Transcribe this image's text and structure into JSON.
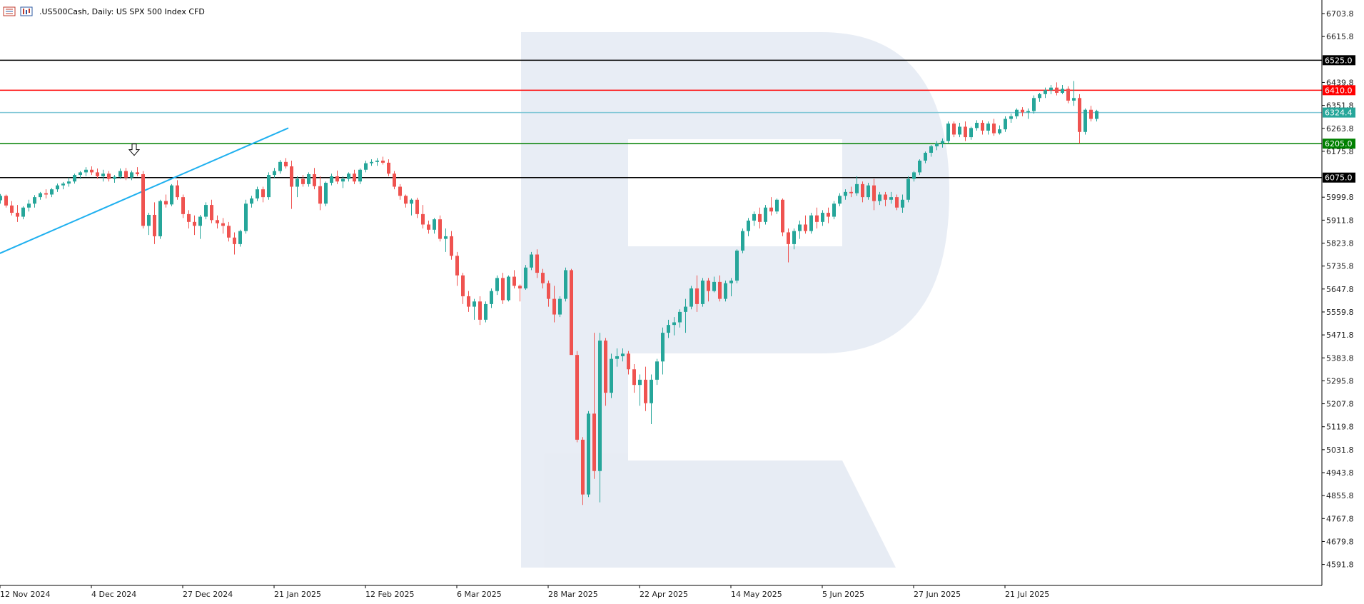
{
  "header": {
    "title": ".US500Cash, Daily:  US SPX 500 Index CFD",
    "icon_names": [
      "chart-window-icon",
      "bars-icon"
    ]
  },
  "chart_data": {
    "type": "candlestick",
    "title": ".US500Cash, Daily:  US SPX 500 Index CFD",
    "symbol": ".US500Cash",
    "timeframe": "Daily",
    "description": "US SPX 500 Index CFD",
    "y_ticks": [
      6703.8,
      6615.8,
      6439.8,
      6351.8,
      6263.8,
      6175.8,
      5999.8,
      5911.8,
      5823.8,
      5735.8,
      5647.8,
      5559.8,
      5471.8,
      5383.8,
      5295.8,
      5207.8,
      5119.8,
      5031.8,
      4943.8,
      4855.8,
      4767.8,
      4679.8,
      4591.8
    ],
    "y_tick_labels": [
      "6703.8",
      "6615.8",
      "6439.8",
      "6351.8",
      "6263.8",
      "6175.8",
      "5999.8",
      "5911.8",
      "5823.8",
      "5735.8",
      "5647.8",
      "5559.8",
      "5471.8",
      "5383.8",
      "5295.8",
      "5207.8",
      "5119.8",
      "5031.8",
      "4943.8",
      "4855.8",
      "4767.8",
      "4679.8",
      "4591.8"
    ],
    "ylim": [
      4555,
      6745
    ],
    "x_labels": [
      {
        "index": 0,
        "label": "12 Nov 2024"
      },
      {
        "index": 16,
        "label": "4 Dec 2024"
      },
      {
        "index": 32,
        "label": "27 Dec 2024"
      },
      {
        "index": 48,
        "label": "21 Jan 2025"
      },
      {
        "index": 64,
        "label": "12 Feb 2025"
      },
      {
        "index": 80,
        "label": "6 Mar 2025"
      },
      {
        "index": 96,
        "label": "28 Mar 2025"
      },
      {
        "index": 112,
        "label": "22 Apr 2025"
      },
      {
        "index": 128,
        "label": "14 May 2025"
      },
      {
        "index": 144,
        "label": "5 Jun 2025"
      },
      {
        "index": 160,
        "label": "27 Jun 2025"
      },
      {
        "index": 176,
        "label": "21 Jul 2025"
      }
    ],
    "horizontal_levels": [
      {
        "name": "level-6525",
        "value": 6525.0,
        "label": "6525.0",
        "color": "#000000",
        "label_bg": "#000000",
        "label_fg": "#ffffff"
      },
      {
        "name": "level-6410",
        "value": 6410.0,
        "label": "6410.0",
        "color": "#ff0000",
        "label_bg": "#ff0000",
        "label_fg": "#ffffff"
      },
      {
        "name": "level-6324",
        "value": 6324.4,
        "label": "6324.4",
        "color": "#7fc6d6",
        "label_bg": "#26a69a",
        "label_fg": "#ffffff"
      },
      {
        "name": "level-6205",
        "value": 6205.0,
        "label": "6205.0",
        "color": "#008000",
        "label_bg": "#008000",
        "label_fg": "#ffffff"
      },
      {
        "name": "level-6075",
        "value": 6075.0,
        "label": "6075.0",
        "color": "#000000",
        "label_bg": "#000000",
        "label_fg": "#ffffff"
      }
    ],
    "trendline": {
      "color": "#1fb0ef",
      "from": {
        "index": -0.5,
        "value": 5780
      },
      "to": {
        "index": 50.5,
        "value": 6265
      }
    },
    "arrow_marker": {
      "index": 23.5,
      "value": 6160,
      "direction": "down"
    },
    "colors": {
      "up": "#26a69a",
      "down": "#ef5350",
      "grid": "#ffffff",
      "axis": "#000000"
    },
    "candles": [
      [
        5988,
        6012,
        5975,
        6005
      ],
      [
        6005,
        6010,
        5960,
        5968
      ],
      [
        5968,
        5985,
        5930,
        5940
      ],
      [
        5940,
        5970,
        5905,
        5925
      ],
      [
        5925,
        5965,
        5915,
        5960
      ],
      [
        5960,
        5990,
        5945,
        5975
      ],
      [
        5975,
        6008,
        5960,
        6000
      ],
      [
        6000,
        6020,
        5990,
        6015
      ],
      [
        6015,
        6030,
        5995,
        6010
      ],
      [
        6010,
        6035,
        6000,
        6030
      ],
      [
        6030,
        6052,
        6020,
        6045
      ],
      [
        6045,
        6058,
        6030,
        6052
      ],
      [
        6052,
        6075,
        6040,
        6060
      ],
      [
        6060,
        6090,
        6052,
        6085
      ],
      [
        6085,
        6100,
        6070,
        6095
      ],
      [
        6095,
        6115,
        6080,
        6105
      ],
      [
        6105,
        6118,
        6085,
        6095
      ],
      [
        6095,
        6110,
        6070,
        6080
      ],
      [
        6080,
        6105,
        6060,
        6090
      ],
      [
        6090,
        6100,
        6060,
        6070
      ],
      [
        6070,
        6085,
        6055,
        6078
      ],
      [
        6078,
        6110,
        6070,
        6100
      ],
      [
        6100,
        6112,
        6065,
        6075
      ],
      [
        6075,
        6102,
        6065,
        6095
      ],
      [
        6095,
        6115,
        6080,
        6088
      ],
      [
        6088,
        6100,
        5880,
        5890
      ],
      [
        5890,
        5940,
        5855,
        5932
      ],
      [
        5932,
        5980,
        5820,
        5850
      ],
      [
        5850,
        5990,
        5840,
        5985
      ],
      [
        5985,
        6010,
        5960,
        5972
      ],
      [
        5972,
        6050,
        5965,
        6045
      ],
      [
        6045,
        6065,
        5990,
        6000
      ],
      [
        6000,
        6010,
        5920,
        5935
      ],
      [
        5935,
        5950,
        5880,
        5905
      ],
      [
        5905,
        5930,
        5855,
        5890
      ],
      [
        5890,
        5932,
        5840,
        5925
      ],
      [
        5925,
        5980,
        5915,
        5970
      ],
      [
        5970,
        5990,
        5900,
        5912
      ],
      [
        5912,
        5930,
        5880,
        5900
      ],
      [
        5900,
        5920,
        5860,
        5890
      ],
      [
        5890,
        5905,
        5830,
        5845
      ],
      [
        5845,
        5865,
        5780,
        5820
      ],
      [
        5820,
        5875,
        5810,
        5870
      ],
      [
        5870,
        5990,
        5860,
        5975
      ],
      [
        5975,
        6005,
        5960,
        5995
      ],
      [
        5995,
        6040,
        5985,
        6030
      ],
      [
        6030,
        6040,
        5980,
        6000
      ],
      [
        6000,
        6095,
        5990,
        6085
      ],
      [
        6085,
        6112,
        6075,
        6100
      ],
      [
        6100,
        6142,
        6090,
        6135
      ],
      [
        6135,
        6150,
        6110,
        6118
      ],
      [
        6118,
        6140,
        5955,
        6040
      ],
      [
        6040,
        6080,
        6000,
        6070
      ],
      [
        6070,
        6085,
        6040,
        6050
      ],
      [
        6050,
        6095,
        6040,
        6088
      ],
      [
        6088,
        6112,
        6030,
        6042
      ],
      [
        6042,
        6080,
        5950,
        5975
      ],
      [
        5975,
        6060,
        5965,
        6055
      ],
      [
        6055,
        6090,
        6045,
        6080
      ],
      [
        6080,
        6102,
        6050,
        6060
      ],
      [
        6060,
        6080,
        6035,
        6070
      ],
      [
        6070,
        6095,
        6060,
        6090
      ],
      [
        6090,
        6105,
        6050,
        6060
      ],
      [
        6060,
        6110,
        6050,
        6105
      ],
      [
        6105,
        6140,
        6095,
        6130
      ],
      [
        6130,
        6145,
        6120,
        6135
      ],
      [
        6135,
        6150,
        6120,
        6140
      ],
      [
        6140,
        6155,
        6125,
        6132
      ],
      [
        6132,
        6145,
        6080,
        6090
      ],
      [
        6090,
        6100,
        6030,
        6040
      ],
      [
        6040,
        6050,
        5990,
        6005
      ],
      [
        6005,
        6010,
        5960,
        5975
      ],
      [
        5975,
        5995,
        5930,
        5990
      ],
      [
        5990,
        5998,
        5920,
        5935
      ],
      [
        5935,
        5970,
        5880,
        5895
      ],
      [
        5895,
        5910,
        5860,
        5875
      ],
      [
        5875,
        5920,
        5860,
        5915
      ],
      [
        5915,
        5930,
        5830,
        5840
      ],
      [
        5840,
        5880,
        5790,
        5850
      ],
      [
        5850,
        5870,
        5760,
        5775
      ],
      [
        5775,
        5790,
        5660,
        5700
      ],
      [
        5700,
        5710,
        5590,
        5620
      ],
      [
        5620,
        5640,
        5560,
        5580
      ],
      [
        5580,
        5610,
        5530,
        5600
      ],
      [
        5600,
        5620,
        5510,
        5530
      ],
      [
        5530,
        5600,
        5520,
        5590
      ],
      [
        5590,
        5650,
        5575,
        5640
      ],
      [
        5640,
        5700,
        5625,
        5690
      ],
      [
        5690,
        5710,
        5590,
        5605
      ],
      [
        5605,
        5700,
        5600,
        5695
      ],
      [
        5695,
        5720,
        5650,
        5660
      ],
      [
        5660,
        5665,
        5600,
        5650
      ],
      [
        5650,
        5740,
        5645,
        5730
      ],
      [
        5730,
        5790,
        5720,
        5780
      ],
      [
        5780,
        5800,
        5690,
        5710
      ],
      [
        5710,
        5725,
        5650,
        5670
      ],
      [
        5670,
        5680,
        5580,
        5610
      ],
      [
        5610,
        5660,
        5520,
        5550
      ],
      [
        5550,
        5620,
        5540,
        5610
      ],
      [
        5610,
        5730,
        5600,
        5720
      ],
      [
        5720,
        5725,
        5400,
        5395
      ],
      [
        5395,
        5410,
        5060,
        5070
      ],
      [
        5070,
        5080,
        4820,
        4860
      ],
      [
        4860,
        5180,
        4850,
        5170
      ],
      [
        5170,
        5480,
        4920,
        4950
      ],
      [
        4950,
        5480,
        4830,
        5450
      ],
      [
        5450,
        5460,
        5200,
        5250
      ],
      [
        5250,
        5400,
        5230,
        5380
      ],
      [
        5380,
        5420,
        5350,
        5390
      ],
      [
        5390,
        5420,
        5370,
        5400
      ],
      [
        5400,
        5410,
        5320,
        5340
      ],
      [
        5340,
        5360,
        5250,
        5280
      ],
      [
        5280,
        5320,
        5200,
        5300
      ],
      [
        5300,
        5350,
        5180,
        5210
      ],
      [
        5210,
        5320,
        5130,
        5300
      ],
      [
        5300,
        5380,
        5280,
        5370
      ],
      [
        5370,
        5500,
        5320,
        5480
      ],
      [
        5480,
        5530,
        5460,
        5510
      ],
      [
        5510,
        5540,
        5470,
        5520
      ],
      [
        5520,
        5570,
        5500,
        5560
      ],
      [
        5560,
        5610,
        5480,
        5580
      ],
      [
        5580,
        5660,
        5570,
        5650
      ],
      [
        5650,
        5700,
        5560,
        5590
      ],
      [
        5590,
        5690,
        5580,
        5680
      ],
      [
        5680,
        5690,
        5600,
        5640
      ],
      [
        5640,
        5695,
        5635,
        5675
      ],
      [
        5675,
        5700,
        5600,
        5610
      ],
      [
        5610,
        5680,
        5600,
        5670
      ],
      [
        5670,
        5690,
        5620,
        5680
      ],
      [
        5680,
        5800,
        5670,
        5795
      ],
      [
        5795,
        5880,
        5785,
        5870
      ],
      [
        5870,
        5920,
        5850,
        5910
      ],
      [
        5910,
        5945,
        5890,
        5935
      ],
      [
        5935,
        5960,
        5880,
        5905
      ],
      [
        5905,
        5970,
        5895,
        5960
      ],
      [
        5960,
        6000,
        5930,
        5945
      ],
      [
        5945,
        5995,
        5935,
        5990
      ],
      [
        5990,
        5995,
        5850,
        5865
      ],
      [
        5865,
        5880,
        5750,
        5820
      ],
      [
        5820,
        5880,
        5800,
        5870
      ],
      [
        5870,
        5910,
        5840,
        5895
      ],
      [
        5895,
        5930,
        5860,
        5870
      ],
      [
        5870,
        5940,
        5860,
        5930
      ],
      [
        5930,
        5960,
        5880,
        5905
      ],
      [
        5905,
        5950,
        5890,
        5940
      ],
      [
        5940,
        5960,
        5900,
        5925
      ],
      [
        5925,
        5985,
        5915,
        5975
      ],
      [
        5975,
        6015,
        5965,
        6005
      ],
      [
        6005,
        6030,
        5990,
        6020
      ],
      [
        6020,
        6040,
        6000,
        6015
      ],
      [
        6015,
        6080,
        6005,
        6050
      ],
      [
        6050,
        6060,
        5980,
        6000
      ],
      [
        6000,
        6055,
        5990,
        6045
      ],
      [
        6045,
        6070,
        5950,
        5985
      ],
      [
        5985,
        6020,
        5970,
        6010
      ],
      [
        6010,
        6020,
        5965,
        5990
      ],
      [
        5990,
        6020,
        5975,
        6000
      ],
      [
        6000,
        6010,
        5950,
        5960
      ],
      [
        5960,
        6010,
        5940,
        5990
      ],
      [
        5990,
        6080,
        5980,
        6070
      ],
      [
        6070,
        6100,
        6060,
        6095
      ],
      [
        6095,
        6145,
        6085,
        6140
      ],
      [
        6140,
        6175,
        6130,
        6170
      ],
      [
        6170,
        6200,
        6155,
        6195
      ],
      [
        6195,
        6215,
        6180,
        6205
      ],
      [
        6205,
        6225,
        6190,
        6215
      ],
      [
        6215,
        6290,
        6205,
        6282
      ],
      [
        6282,
        6290,
        6230,
        6240
      ],
      [
        6240,
        6285,
        6230,
        6270
      ],
      [
        6270,
        6290,
        6215,
        6230
      ],
      [
        6230,
        6270,
        6220,
        6265
      ],
      [
        6265,
        6295,
        6255,
        6285
      ],
      [
        6285,
        6295,
        6240,
        6255
      ],
      [
        6255,
        6290,
        6240,
        6282
      ],
      [
        6282,
        6300,
        6235,
        6245
      ],
      [
        6245,
        6275,
        6240,
        6260
      ],
      [
        6260,
        6310,
        6250,
        6300
      ],
      [
        6300,
        6320,
        6285,
        6310
      ],
      [
        6310,
        6340,
        6300,
        6335
      ],
      [
        6335,
        6345,
        6310,
        6325
      ],
      [
        6325,
        6340,
        6300,
        6330
      ],
      [
        6330,
        6390,
        6320,
        6380
      ],
      [
        6380,
        6400,
        6365,
        6395
      ],
      [
        6395,
        6420,
        6380,
        6410
      ],
      [
        6410,
        6430,
        6395,
        6420
      ],
      [
        6420,
        6440,
        6390,
        6400
      ],
      [
        6400,
        6430,
        6395,
        6415
      ],
      [
        6415,
        6425,
        6360,
        6370
      ],
      [
        6370,
        6445,
        6350,
        6380
      ],
      [
        6380,
        6395,
        6205,
        6250
      ],
      [
        6250,
        6340,
        6240,
        6335
      ],
      [
        6335,
        6350,
        6290,
        6300
      ],
      [
        6300,
        6335,
        6290,
        6330
      ]
    ]
  }
}
